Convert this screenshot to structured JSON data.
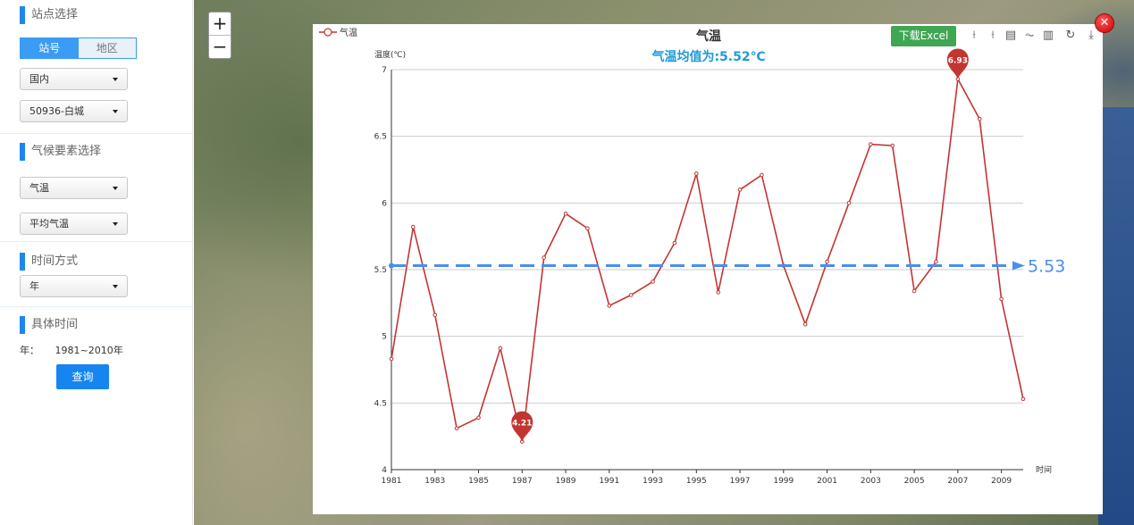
{
  "sidebar": {
    "station_section": "站点选择",
    "toggle": {
      "left": "站号",
      "right": "地区"
    },
    "region_select": "国内",
    "station_select": "50936-白城",
    "element_section": "气候要素选择",
    "element_select": "气温",
    "element_sub_select": "平均气温",
    "time_section": "时间方式",
    "time_select": "年",
    "specific_section": "具体时间",
    "year_label": "年：",
    "year_range": "1981~2010年",
    "query_button": "查询"
  },
  "map": {
    "zoom_in": "+",
    "zoom_out": "−"
  },
  "toolbar": {
    "excel_button": "下载Excel",
    "icons": [
      "zoom-icon",
      "zoom-reset-icon",
      "data-view-icon",
      "line-chart-icon",
      "bar-chart-icon",
      "restore-icon",
      "download-icon"
    ],
    "icon_glyphs": [
      "⟊",
      "⟊",
      "▤",
      "⏦",
      "▥",
      "↻",
      "⤓"
    ]
  },
  "colors": {
    "line": "#c23531",
    "mean": "#4a8ef0",
    "subtitle": "#1e9bd7",
    "excel": "#3fa653",
    "accent": "#1e86f0"
  },
  "chart_data": {
    "type": "line",
    "title": "气温",
    "subtitle": "气温均值为:5.52℃",
    "ylabel": "温度(℃)",
    "xlabel": "时间",
    "legend": [
      "气温"
    ],
    "legend_position": "top-left",
    "ylim": [
      4,
      7
    ],
    "yticks": [
      "4",
      "4.5",
      "5",
      "5.5",
      "6",
      "6.5",
      "7"
    ],
    "x_ticks": [
      "1981",
      "1983",
      "1985",
      "1987",
      "1989",
      "1991",
      "1993",
      "1995",
      "1997",
      "1999",
      "2001",
      "2003",
      "2005",
      "2007",
      "2009"
    ],
    "x": [
      1981,
      1982,
      1983,
      1984,
      1985,
      1986,
      1987,
      1988,
      1989,
      1990,
      1991,
      1992,
      1993,
      1994,
      1995,
      1996,
      1997,
      1998,
      1999,
      2000,
      2001,
      2002,
      2003,
      2004,
      2005,
      2006,
      2007,
      2008,
      2009,
      2010
    ],
    "series": [
      {
        "name": "气温",
        "values": [
          4.83,
          5.82,
          5.16,
          4.31,
          4.39,
          4.91,
          4.21,
          5.59,
          5.92,
          5.81,
          5.23,
          5.31,
          5.41,
          5.7,
          6.22,
          5.33,
          6.1,
          6.21,
          5.53,
          5.09,
          5.56,
          6.0,
          6.44,
          6.43,
          5.34,
          5.56,
          6.93,
          6.63,
          5.28,
          4.53
        ]
      }
    ],
    "markpoints": [
      {
        "label": "4.21",
        "x": 1987,
        "y": 4.21
      },
      {
        "label": "6.93",
        "x": 2007,
        "y": 6.93
      }
    ],
    "markline": {
      "label": "5.53",
      "y": 5.53
    },
    "grid": true
  }
}
